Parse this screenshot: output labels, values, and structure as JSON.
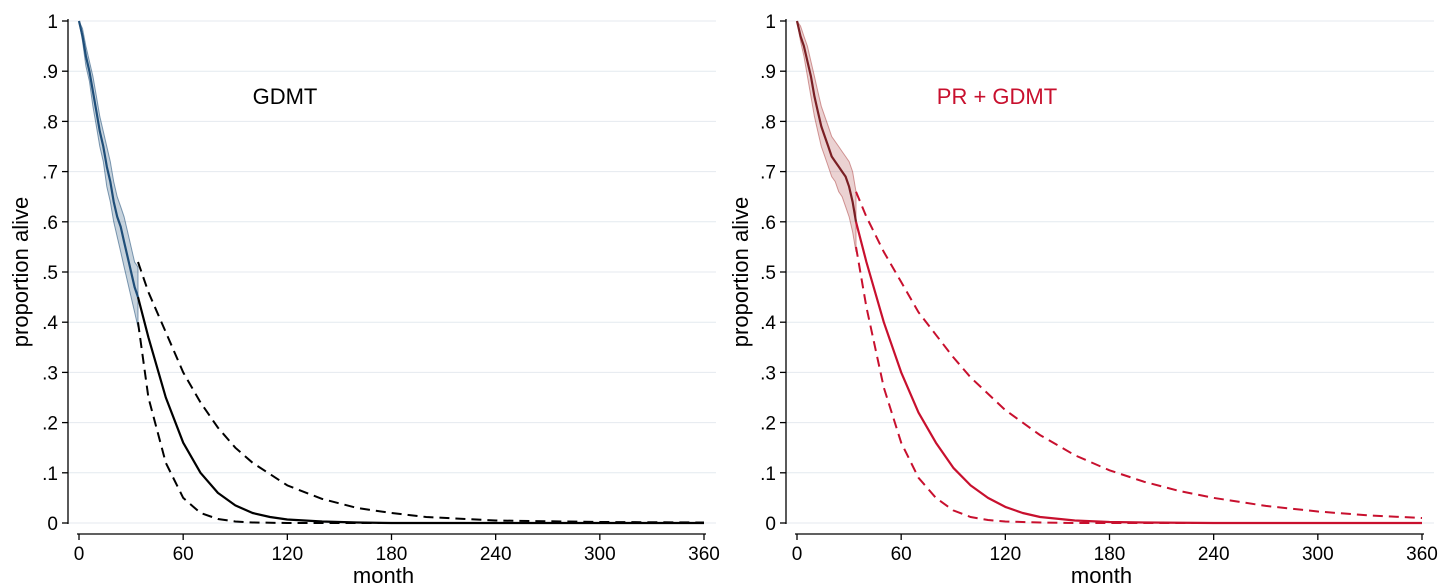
{
  "chart_data": [
    {
      "type": "line",
      "annotation": "GDMT",
      "annotation_color": "#000000",
      "xlabel": "month",
      "ylabel": "proportion alive",
      "xlim": [
        0,
        360
      ],
      "ylim": [
        0,
        1
      ],
      "xticks": [
        0,
        60,
        120,
        180,
        240,
        300,
        360
      ],
      "xtick_labels": [
        "0",
        "60",
        "120",
        "180",
        "240",
        "300",
        "360"
      ],
      "yticks": [
        0,
        0.1,
        0.2,
        0.3,
        0.4,
        0.5,
        0.6,
        0.7,
        0.8,
        0.9,
        1
      ],
      "ytick_labels": [
        "0",
        ".1",
        ".2",
        ".3",
        ".4",
        ".5",
        ".6",
        ".7",
        ".8",
        ".9",
        "1"
      ],
      "grid": true,
      "observed_color": "#1f4e79",
      "observed_band_color": "#1f4e79",
      "extrapolation_color": "#000000",
      "series": [
        {
          "role": "observed",
          "x": [
            0,
            2,
            4,
            6,
            8,
            10,
            12,
            14,
            16,
            18,
            20,
            22,
            24,
            26,
            28,
            30,
            32,
            34
          ],
          "y": [
            1.0,
            0.97,
            0.93,
            0.9,
            0.86,
            0.82,
            0.78,
            0.75,
            0.71,
            0.68,
            0.64,
            0.61,
            0.59,
            0.56,
            0.53,
            0.5,
            0.47,
            0.45
          ],
          "lower": [
            1.0,
            0.96,
            0.91,
            0.88,
            0.83,
            0.79,
            0.75,
            0.72,
            0.67,
            0.64,
            0.6,
            0.57,
            0.54,
            0.51,
            0.48,
            0.45,
            0.42,
            0.39
          ],
          "upper": [
            1.0,
            0.985,
            0.95,
            0.92,
            0.89,
            0.85,
            0.81,
            0.78,
            0.75,
            0.72,
            0.68,
            0.65,
            0.63,
            0.61,
            0.58,
            0.55,
            0.52,
            0.51
          ]
        },
        {
          "role": "extrapolation",
          "x": [
            34,
            40,
            50,
            60,
            70,
            80,
            90,
            100,
            110,
            120,
            140,
            160,
            180,
            200,
            240,
            300,
            360
          ],
          "y": [
            0.45,
            0.37,
            0.25,
            0.16,
            0.1,
            0.06,
            0.035,
            0.02,
            0.012,
            0.007,
            0.003,
            0.001,
            0.0,
            0.0,
            0.0,
            0.0,
            0.0
          ]
        },
        {
          "role": "lower-bound",
          "x": [
            34,
            40,
            50,
            60,
            70,
            80,
            90,
            100,
            120,
            150,
            200,
            300,
            360
          ],
          "y": [
            0.4,
            0.25,
            0.12,
            0.05,
            0.02,
            0.008,
            0.003,
            0.001,
            0.0,
            0.0,
            0.0,
            0.0,
            0.0
          ]
        },
        {
          "role": "upper-bound",
          "x": [
            34,
            40,
            50,
            60,
            70,
            80,
            90,
            100,
            120,
            140,
            160,
            180,
            200,
            240,
            300,
            360
          ],
          "y": [
            0.52,
            0.46,
            0.38,
            0.3,
            0.24,
            0.19,
            0.15,
            0.12,
            0.075,
            0.048,
            0.03,
            0.02,
            0.012,
            0.005,
            0.002,
            0.001
          ]
        }
      ]
    },
    {
      "type": "line",
      "annotation": "PR + GDMT",
      "annotation_color": "#c8102e",
      "xlabel": "month",
      "ylabel": "proportion alive",
      "xlim": [
        0,
        360
      ],
      "ylim": [
        0,
        1
      ],
      "xticks": [
        0,
        60,
        120,
        180,
        240,
        300,
        360
      ],
      "xtick_labels": [
        "0",
        "60",
        "120",
        "180",
        "240",
        "300",
        "360"
      ],
      "yticks": [
        0,
        0.1,
        0.2,
        0.3,
        0.4,
        0.5,
        0.6,
        0.7,
        0.8,
        0.9,
        1
      ],
      "ytick_labels": [
        "0",
        ".1",
        ".2",
        ".3",
        ".4",
        ".5",
        ".6",
        ".7",
        ".8",
        ".9",
        "1"
      ],
      "grid": true,
      "observed_color": "#7a1f24",
      "observed_band_color": "#b04a4a",
      "extrapolation_color": "#c8102e",
      "series": [
        {
          "role": "observed",
          "x": [
            0,
            2,
            4,
            6,
            8,
            10,
            12,
            14,
            16,
            18,
            20,
            22,
            24,
            26,
            28,
            30,
            32,
            34
          ],
          "y": [
            1.0,
            0.97,
            0.95,
            0.92,
            0.89,
            0.85,
            0.82,
            0.79,
            0.77,
            0.75,
            0.73,
            0.72,
            0.71,
            0.7,
            0.69,
            0.67,
            0.64,
            0.6
          ],
          "lower": [
            1.0,
            0.96,
            0.93,
            0.89,
            0.85,
            0.81,
            0.78,
            0.75,
            0.73,
            0.71,
            0.69,
            0.68,
            0.66,
            0.65,
            0.63,
            0.61,
            0.58,
            0.54
          ],
          "upper": [
            1.0,
            0.99,
            0.97,
            0.95,
            0.92,
            0.89,
            0.86,
            0.83,
            0.81,
            0.79,
            0.77,
            0.76,
            0.75,
            0.74,
            0.73,
            0.72,
            0.7,
            0.66
          ]
        },
        {
          "role": "extrapolation",
          "x": [
            34,
            40,
            50,
            60,
            70,
            80,
            90,
            100,
            110,
            120,
            130,
            140,
            160,
            180,
            200,
            240,
            300,
            360
          ],
          "y": [
            0.6,
            0.52,
            0.4,
            0.3,
            0.22,
            0.16,
            0.11,
            0.075,
            0.05,
            0.032,
            0.02,
            0.012,
            0.005,
            0.002,
            0.001,
            0.0,
            0.0,
            0.0
          ]
        },
        {
          "role": "lower-bound",
          "x": [
            34,
            40,
            50,
            60,
            70,
            80,
            90,
            100,
            110,
            120,
            140,
            160,
            200,
            300,
            360
          ],
          "y": [
            0.55,
            0.43,
            0.27,
            0.16,
            0.09,
            0.05,
            0.025,
            0.012,
            0.006,
            0.003,
            0.001,
            0.0,
            0.0,
            0.0,
            0.0
          ]
        },
        {
          "role": "upper-bound",
          "x": [
            34,
            40,
            50,
            60,
            70,
            80,
            90,
            100,
            120,
            140,
            160,
            180,
            200,
            220,
            240,
            270,
            300,
            330,
            360
          ],
          "y": [
            0.66,
            0.61,
            0.54,
            0.48,
            0.42,
            0.375,
            0.33,
            0.29,
            0.225,
            0.175,
            0.135,
            0.105,
            0.082,
            0.064,
            0.05,
            0.034,
            0.023,
            0.015,
            0.01
          ]
        }
      ]
    }
  ]
}
